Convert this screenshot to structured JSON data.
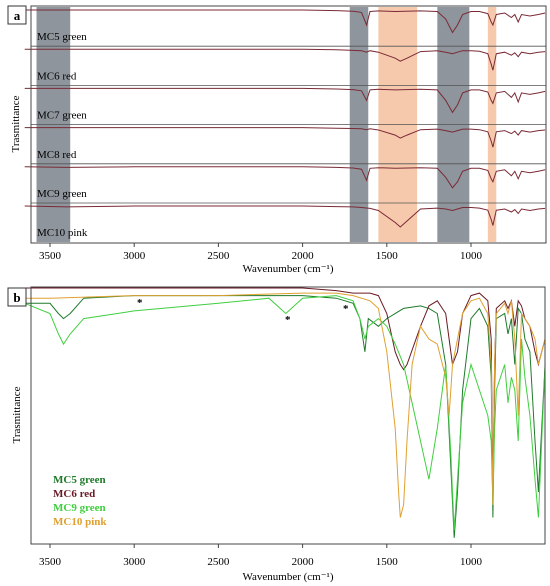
{
  "panel_a": {
    "letter": "a",
    "ylabel": "Trasmittance",
    "xlabel": "Wavenumber (cm⁻¹)",
    "ticks": [
      "3500",
      "3000",
      "2500",
      "2000",
      "1500",
      "1000"
    ],
    "row_labels": [
      "MC5 green",
      "MC6 red",
      "MC7 green",
      "MC8 red",
      "MC9 green",
      "MC10 pink"
    ]
  },
  "panel_b": {
    "letter": "b",
    "ylabel": "Trasmittance",
    "xlabel": "Wavenumber (cm⁻¹)",
    "ticks": [
      "3500",
      "3000",
      "2500",
      "2000",
      "1500",
      "1000"
    ],
    "legend": [
      "MC5 green",
      "MC6 red",
      "MC9 green",
      "MC10 pink"
    ],
    "asterisk": "*"
  },
  "colors": {
    "trace_a": "#7a2a35",
    "gray_band": "#8e959c",
    "peach_band": "#f6c9ad",
    "mc5": "#1e7a2a",
    "mc6": "#6b1a24",
    "mc9": "#3fcf3f",
    "mc10": "#e0a030"
  },
  "chart_data": [
    {
      "type": "line",
      "title": "",
      "xlabel": "Wavenumber (cm⁻¹)",
      "ylabel": "Trasmittance",
      "xlim": [
        3650,
        560
      ],
      "x_reversed": true,
      "highlight_bands": [
        {
          "from": 3580,
          "to": 3380,
          "color": "gray"
        },
        {
          "from": 1720,
          "to": 1610,
          "color": "gray"
        },
        {
          "from": 1550,
          "to": 1320,
          "color": "peach"
        },
        {
          "from": 1200,
          "to": 1010,
          "color": "gray"
        },
        {
          "from": 900,
          "to": 850,
          "color": "peach"
        }
      ],
      "series": [
        {
          "name": "MC5 green",
          "x": [
            3650,
            3400,
            3000,
            2500,
            2000,
            1800,
            1700,
            1650,
            1620,
            1600,
            1550,
            1450,
            1300,
            1200,
            1150,
            1110,
            1080,
            1050,
            1000,
            950,
            900,
            880,
            870,
            850,
            800,
            760,
            740,
            720,
            700,
            650,
            600,
            560
          ],
          "y": [
            1,
            1,
            1,
            1,
            1,
            0.98,
            0.96,
            0.92,
            0.5,
            0.95,
            0.97,
            0.95,
            0.97,
            0.95,
            0.7,
            0.25,
            0.5,
            0.85,
            0.95,
            0.95,
            0.88,
            0.6,
            0.5,
            0.85,
            0.9,
            0.75,
            0.85,
            0.6,
            0.85,
            0.8,
            0.85,
            0.9
          ]
        },
        {
          "name": "MC6 red",
          "x": [
            3650,
            3400,
            3000,
            2500,
            2000,
            1800,
            1700,
            1650,
            1620,
            1600,
            1550,
            1450,
            1420,
            1380,
            1300,
            1200,
            1150,
            1110,
            1080,
            1050,
            1000,
            950,
            900,
            880,
            870,
            850,
            800,
            760,
            740,
            720,
            700,
            650,
            600,
            560
          ],
          "y": [
            1,
            1,
            1,
            1,
            1,
            0.98,
            0.96,
            0.95,
            0.9,
            0.95,
            0.9,
            0.7,
            0.6,
            0.7,
            0.92,
            0.95,
            0.9,
            0.85,
            0.9,
            0.95,
            0.95,
            0.93,
            0.85,
            0.5,
            0.3,
            0.85,
            0.9,
            0.8,
            0.88,
            0.75,
            0.9,
            0.85,
            0.9,
            0.92
          ]
        },
        {
          "name": "MC7 green",
          "x": [
            3650,
            3400,
            3000,
            2500,
            2000,
            1800,
            1700,
            1650,
            1620,
            1600,
            1550,
            1450,
            1300,
            1200,
            1150,
            1110,
            1080,
            1050,
            1000,
            950,
            900,
            880,
            870,
            850,
            800,
            760,
            740,
            720,
            700,
            650,
            600,
            560
          ],
          "y": [
            1,
            1,
            1,
            1,
            1,
            0.98,
            0.96,
            0.92,
            0.6,
            0.95,
            0.97,
            0.95,
            0.97,
            0.95,
            0.6,
            0.2,
            0.45,
            0.85,
            0.95,
            0.95,
            0.88,
            0.6,
            0.5,
            0.85,
            0.9,
            0.7,
            0.85,
            0.55,
            0.85,
            0.8,
            0.85,
            0.9
          ]
        },
        {
          "name": "MC8 red",
          "x": [
            3650,
            3400,
            3000,
            2500,
            2000,
            1800,
            1700,
            1650,
            1620,
            1600,
            1550,
            1450,
            1420,
            1380,
            1300,
            1200,
            1150,
            1110,
            1080,
            1050,
            1000,
            950,
            900,
            880,
            870,
            850,
            800,
            760,
            740,
            720,
            700,
            650,
            600,
            560
          ],
          "y": [
            1,
            1,
            1,
            1,
            1,
            0.98,
            0.97,
            0.96,
            0.93,
            0.96,
            0.92,
            0.75,
            0.65,
            0.75,
            0.93,
            0.95,
            0.9,
            0.85,
            0.9,
            0.95,
            0.95,
            0.93,
            0.86,
            0.55,
            0.35,
            0.86,
            0.9,
            0.8,
            0.88,
            0.75,
            0.9,
            0.85,
            0.9,
            0.92
          ]
        },
        {
          "name": "MC9 green",
          "x": [
            3650,
            3400,
            3000,
            2500,
            2000,
            1800,
            1700,
            1650,
            1620,
            1600,
            1550,
            1450,
            1300,
            1200,
            1150,
            1110,
            1080,
            1050,
            1000,
            950,
            900,
            880,
            870,
            850,
            800,
            760,
            740,
            720,
            700,
            650,
            600,
            560
          ],
          "y": [
            1,
            0.98,
            1,
            1,
            1,
            0.98,
            0.96,
            0.92,
            0.55,
            0.95,
            0.97,
            0.95,
            0.97,
            0.95,
            0.65,
            0.3,
            0.5,
            0.85,
            0.95,
            0.95,
            0.88,
            0.6,
            0.5,
            0.85,
            0.9,
            0.7,
            0.85,
            0.6,
            0.85,
            0.8,
            0.85,
            0.9
          ]
        },
        {
          "name": "MC10 pink",
          "x": [
            3650,
            3400,
            3000,
            2500,
            2000,
            1800,
            1700,
            1650,
            1600,
            1550,
            1450,
            1420,
            1380,
            1300,
            1200,
            1150,
            1110,
            1080,
            1050,
            1000,
            950,
            900,
            880,
            870,
            850,
            800,
            760,
            740,
            720,
            700,
            650,
            600,
            560
          ],
          "y": [
            1,
            0.97,
            1,
            1,
            1,
            0.98,
            0.97,
            0.95,
            0.92,
            0.85,
            0.45,
            0.3,
            0.5,
            0.9,
            0.93,
            0.9,
            0.85,
            0.9,
            0.95,
            0.95,
            0.93,
            0.86,
            0.55,
            0.35,
            0.86,
            0.9,
            0.8,
            0.88,
            0.75,
            0.9,
            0.85,
            0.9,
            0.92
          ]
        }
      ]
    },
    {
      "type": "line",
      "title": "",
      "xlabel": "Wavenumber (cm⁻¹)",
      "ylabel": "Trasmittance",
      "xlim": [
        3650,
        560
      ],
      "x_reversed": true,
      "series": [
        {
          "name": "MC5 green",
          "x": [
            3650,
            3500,
            3450,
            3420,
            3380,
            3300,
            3000,
            2500,
            2000,
            1800,
            1700,
            1660,
            1630,
            1610,
            1550,
            1500,
            1400,
            1300,
            1250,
            1200,
            1150,
            1120,
            1100,
            1080,
            1050,
            1000,
            950,
            900,
            880,
            870,
            860,
            850,
            800,
            780,
            760,
            740,
            720,
            700,
            680,
            650,
            620,
            600,
            580,
            560
          ],
          "y": [
            0.06,
            0.06,
            0.1,
            0.12,
            0.1,
            0.04,
            0.03,
            0.03,
            0.03,
            0.04,
            0.06,
            0.12,
            0.25,
            0.12,
            0.15,
            0.12,
            0.08,
            0.07,
            0.08,
            0.1,
            0.3,
            0.7,
            0.98,
            0.8,
            0.4,
            0.12,
            0.08,
            0.15,
            0.35,
            0.9,
            0.4,
            0.12,
            0.1,
            0.18,
            0.12,
            0.3,
            0.08,
            0.1,
            0.2,
            0.25,
            0.6,
            0.8,
            0.55,
            0.3
          ]
        },
        {
          "name": "MC6 red",
          "x": [
            3650,
            3500,
            3000,
            2500,
            2000,
            1800,
            1700,
            1600,
            1550,
            1500,
            1450,
            1420,
            1400,
            1380,
            1300,
            1250,
            1200,
            1150,
            1130,
            1110,
            1080,
            1050,
            1000,
            950,
            900,
            880,
            870,
            860,
            850,
            800,
            780,
            760,
            740,
            720,
            700,
            680,
            650,
            620,
            600,
            580,
            560
          ],
          "y": [
            0.0,
            0.0,
            0.0,
            0.0,
            0.0,
            0.01,
            0.02,
            0.02,
            0.03,
            0.1,
            0.25,
            0.3,
            0.32,
            0.3,
            0.15,
            0.07,
            0.05,
            0.1,
            0.2,
            0.3,
            0.25,
            0.1,
            0.03,
            0.02,
            0.05,
            0.2,
            0.8,
            0.3,
            0.08,
            0.05,
            0.08,
            0.05,
            0.15,
            0.05,
            0.07,
            0.12,
            0.15,
            0.25,
            0.3,
            0.25,
            0.2
          ]
        },
        {
          "name": "MC9 green",
          "x": [
            3650,
            3500,
            3450,
            3420,
            3380,
            3300,
            3000,
            2500,
            2200,
            2100,
            2000,
            1800,
            1700,
            1660,
            1630,
            1610,
            1550,
            1500,
            1450,
            1400,
            1300,
            1250,
            1200,
            1150,
            1120,
            1100,
            1080,
            1050,
            1000,
            950,
            900,
            880,
            870,
            860,
            850,
            800,
            780,
            760,
            740,
            720,
            700,
            680,
            650,
            620,
            600,
            580,
            560
          ],
          "y": [
            0.06,
            0.1,
            0.18,
            0.22,
            0.18,
            0.12,
            0.09,
            0.06,
            0.04,
            0.1,
            0.04,
            0.03,
            0.05,
            0.12,
            0.2,
            0.15,
            0.12,
            0.15,
            0.22,
            0.3,
            0.6,
            0.75,
            0.55,
            0.3,
            0.65,
            0.95,
            0.75,
            0.45,
            0.3,
            0.4,
            0.5,
            0.6,
            0.85,
            0.55,
            0.4,
            0.3,
            0.45,
            0.35,
            0.4,
            0.6,
            0.2,
            0.35,
            0.5,
            0.75,
            0.9,
            0.6,
            0.3
          ]
        },
        {
          "name": "MC10 pink",
          "x": [
            3650,
            3500,
            3000,
            2500,
            2000,
            1800,
            1700,
            1600,
            1550,
            1500,
            1450,
            1430,
            1420,
            1400,
            1380,
            1350,
            1300,
            1250,
            1200,
            1150,
            1130,
            1110,
            1080,
            1050,
            1000,
            950,
            900,
            880,
            870,
            860,
            850,
            800,
            780,
            760,
            740,
            720,
            700,
            680,
            650,
            620,
            600,
            580,
            560
          ],
          "y": [
            0.04,
            0.04,
            0.03,
            0.03,
            0.02,
            0.02,
            0.03,
            0.05,
            0.08,
            0.25,
            0.55,
            0.8,
            0.9,
            0.85,
            0.6,
            0.3,
            0.15,
            0.2,
            0.22,
            0.35,
            0.5,
            0.3,
            0.2,
            0.1,
            0.05,
            0.04,
            0.1,
            0.3,
            0.85,
            0.3,
            0.1,
            0.06,
            0.1,
            0.05,
            0.2,
            0.5,
            0.1,
            0.12,
            0.15,
            0.2,
            0.3,
            0.25,
            0.2
          ]
        }
      ]
    }
  ]
}
